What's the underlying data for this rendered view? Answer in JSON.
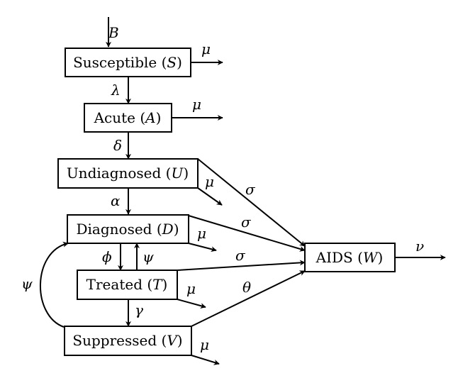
{
  "nodes": {
    "susceptible": {
      "name": "Susceptible",
      "symbol": "S"
    },
    "acute": {
      "name": "Acute",
      "symbol": "A"
    },
    "undiagnosed": {
      "name": "Undiagnosed",
      "symbol": "U"
    },
    "diagnosed": {
      "name": "Diagnosed",
      "symbol": "D"
    },
    "treated": {
      "name": "Treated",
      "symbol": "T"
    },
    "suppressed": {
      "name": "Suppressed",
      "symbol": "V"
    },
    "aids": {
      "name": "AIDS",
      "symbol": "W"
    }
  },
  "rates": {
    "birth": "B",
    "infection": "λ",
    "progression": "δ",
    "diagnosis": "α",
    "treatment_start": "ϕ",
    "treatment_loss": "ψ",
    "suppression": "γ",
    "suppression_loss": "ψ",
    "death": "μ",
    "aids_undiagnosed": "σ",
    "aids_diagnosed": "σ",
    "aids_treated": "σ",
    "aids_suppressed": "θ",
    "aids_death": "ν"
  }
}
